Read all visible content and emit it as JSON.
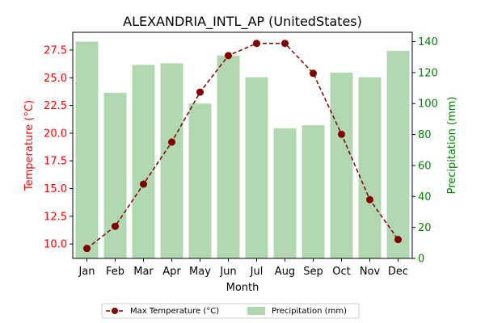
{
  "chart_data": {
    "type": "bar+line",
    "title": "ALEXANDRIA_INTL_AP (UnitedStates)",
    "xlabel": "Month",
    "ylabel_left": "Temperature (°C)",
    "ylabel_right": "Precipitation (mm)",
    "categories": [
      "Jan",
      "Feb",
      "Mar",
      "Apr",
      "May",
      "Jun",
      "Jul",
      "Aug",
      "Sep",
      "Oct",
      "Nov",
      "Dec"
    ],
    "left_axis": {
      "ylim": [
        8.7,
        29.1
      ],
      "ticks": [
        10.0,
        12.5,
        15.0,
        17.5,
        20.0,
        22.5,
        25.0,
        27.5
      ],
      "tick_labels": [
        "10.0",
        "12.5",
        "15.0",
        "17.5",
        "20.0",
        "22.5",
        "25.0",
        "27.5"
      ]
    },
    "right_axis": {
      "ylim": [
        0,
        146
      ],
      "ticks": [
        0,
        20,
        40,
        60,
        80,
        100,
        120,
        140
      ],
      "tick_labels": [
        "0",
        "20",
        "40",
        "60",
        "80",
        "100",
        "120",
        "140"
      ]
    },
    "series": [
      {
        "name": "Max Temperature (°C)",
        "type": "line",
        "axis": "left",
        "color": "#800000",
        "line_style": "dashed",
        "marker": "circle",
        "values": [
          9.6,
          11.6,
          15.4,
          19.2,
          23.7,
          27.0,
          28.1,
          28.1,
          25.4,
          19.9,
          14.0,
          10.4
        ]
      },
      {
        "name": "Precipitation (mm)",
        "type": "bar",
        "axis": "right",
        "color": "#b2d8b2",
        "values": [
          140,
          107,
          125,
          126,
          100,
          131,
          117,
          84,
          86,
          120,
          117,
          134
        ]
      }
    ],
    "legend": {
      "placement": "bottom-center",
      "entries": [
        "Max Temperature (°C)",
        "Precipitation (mm)"
      ]
    },
    "colors": {
      "left_axis_text": "#ff0000",
      "right_axis_text": "#008000",
      "line": "#800000",
      "bars": "#b2d8b2"
    },
    "grid": false
  }
}
